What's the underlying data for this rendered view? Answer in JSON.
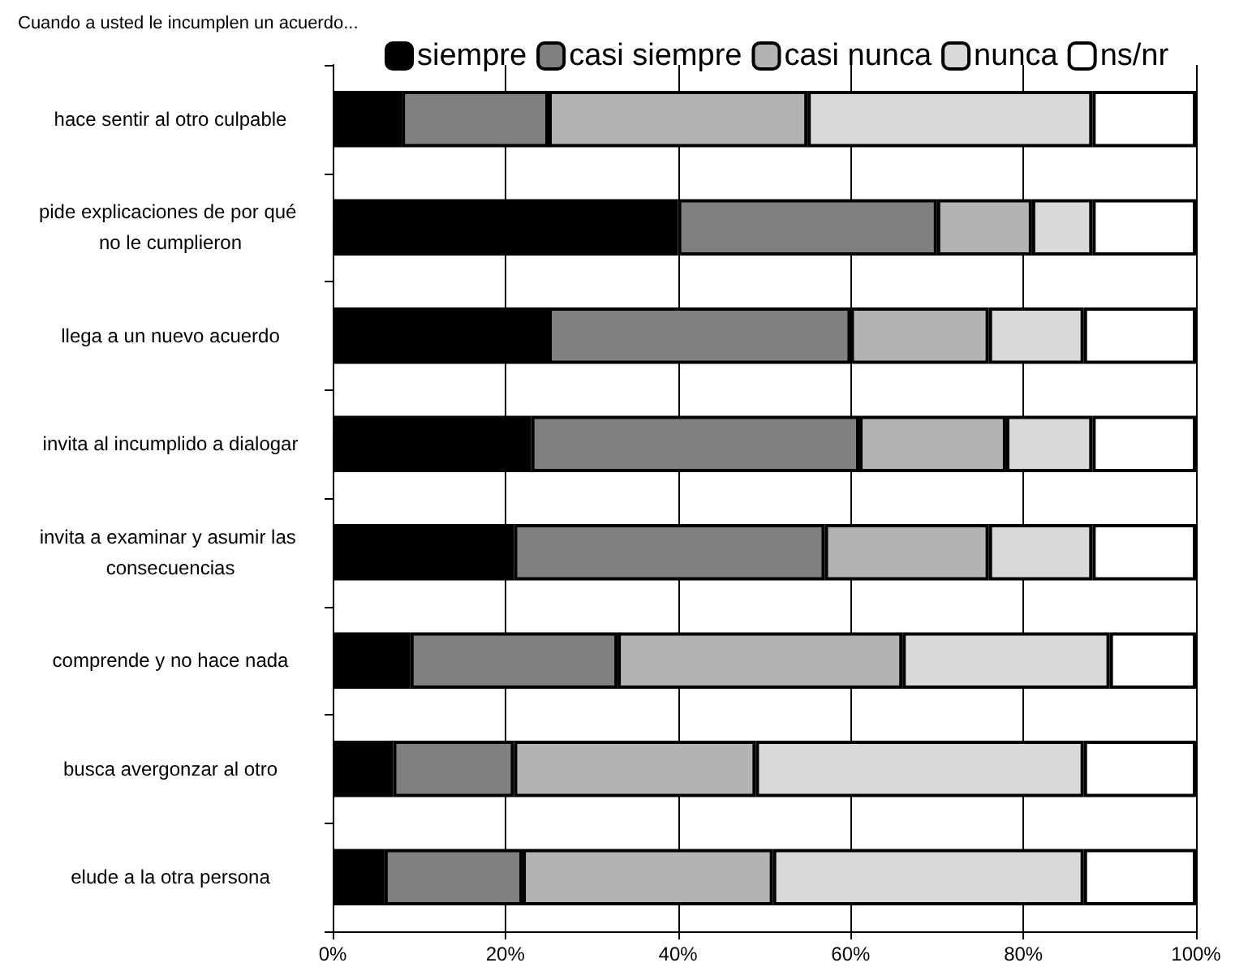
{
  "chart_data": {
    "type": "bar",
    "orientation": "horizontal",
    "stacked": true,
    "title": "Cuando a usted le incumplen un acuerdo...",
    "categories": [
      "hace sentir al otro culpable",
      "pide explicaciones de por qué no le cumplieron",
      "llega a un nuevo acuerdo",
      "invita al incumplido a dialogar",
      "invita a examinar y asumir las consecuencias",
      "comprende y no hace nada",
      "busca avergonzar al otro",
      "elude a la otra persona"
    ],
    "series": [
      {
        "name": "siempre",
        "color": "#000000",
        "values": [
          8,
          40,
          25,
          23,
          21,
          9,
          7,
          6
        ]
      },
      {
        "name": "casi siempre",
        "color": "#808080",
        "values": [
          17,
          30,
          35,
          38,
          36,
          24,
          14,
          16
        ]
      },
      {
        "name": "casi nunca",
        "color": "#b3b3b3",
        "values": [
          30,
          11,
          16,
          17,
          19,
          33,
          28,
          29
        ]
      },
      {
        "name": "nunca",
        "color": "#d9d9d9",
        "values": [
          33,
          7,
          11,
          10,
          12,
          24,
          38,
          36
        ]
      },
      {
        "name": "ns/nr",
        "color": "#ffffff",
        "values": [
          12,
          12,
          13,
          12,
          12,
          10,
          13,
          13
        ]
      }
    ],
    "xlim": [
      0,
      100
    ],
    "xticks": [
      {
        "value": 0,
        "label": "0%"
      },
      {
        "value": 20,
        "label": "20%"
      },
      {
        "value": 40,
        "label": "40%"
      },
      {
        "value": 60,
        "label": "60%"
      },
      {
        "value": 80,
        "label": "80%"
      },
      {
        "value": 100,
        "label": "100%"
      }
    ],
    "grid": "x",
    "legend": "top"
  }
}
